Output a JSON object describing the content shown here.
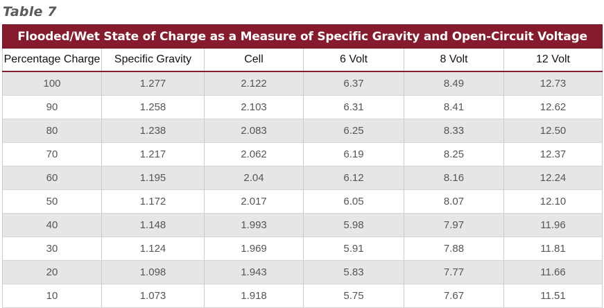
{
  "table_label": "Table 7",
  "table_title": "Flooded/Wet State of Charge as a Measure of Specific Gravity and Open-Circuit Voltage",
  "columns": [
    "Percentage Charge",
    "Specific Gravity",
    "Cell",
    "6 Volt",
    "8 Volt",
    "12 Volt"
  ],
  "rows": [
    [
      "100",
      "1.277",
      "2.122",
      "6.37",
      "8.49",
      "12.73"
    ],
    [
      "90",
      "1.258",
      "2.103",
      "6.31",
      "8.41",
      "12.62"
    ],
    [
      "80",
      "1.238",
      "2.083",
      "6.25",
      "8.33",
      "12.50"
    ],
    [
      "70",
      "1.217",
      "2.062",
      "6.19",
      "8.25",
      "12.37"
    ],
    [
      "60",
      "1.195",
      "2.04",
      "6.12",
      "8.16",
      "12.24"
    ],
    [
      "50",
      "1.172",
      "2.017",
      "6.05",
      "8.07",
      "12.10"
    ],
    [
      "40",
      "1.148",
      "1.993",
      "5.98",
      "7.97",
      "11.96"
    ],
    [
      "30",
      "1.124",
      "1.969",
      "5.91",
      "7.88",
      "11.81"
    ],
    [
      "20",
      "1.098",
      "1.943",
      "5.83",
      "7.77",
      "11.66"
    ],
    [
      "10",
      "1.073",
      "1.918",
      "5.75",
      "7.67",
      "11.51"
    ]
  ],
  "colors": {
    "title_bar": "#861b2d",
    "stripe": "#e6e6e6"
  }
}
